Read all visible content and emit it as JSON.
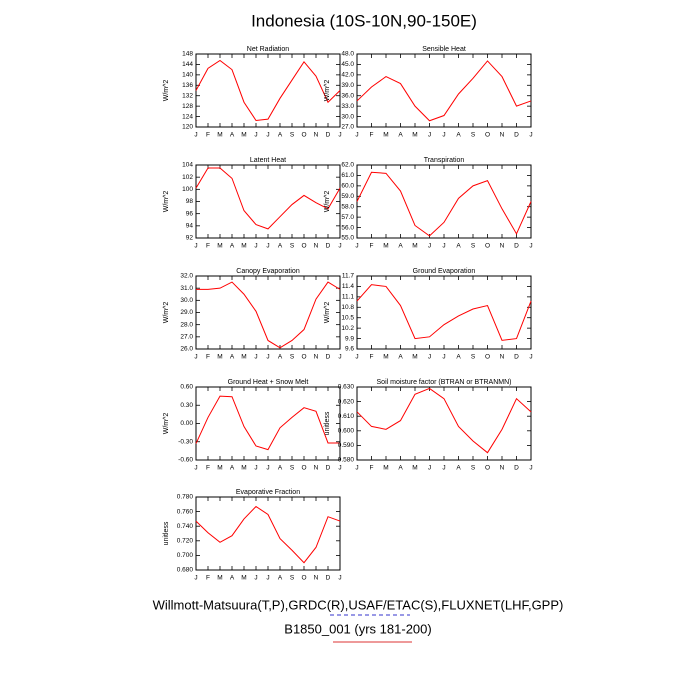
{
  "title": "Indonesia (10S-10N,90-150E)",
  "footer": [
    "Willmott-Matsuura(T,P),GRDC(R),USAF/ETAC(S),FLUXNET(LHF,GPP)",
    "B1850_001 (yrs 181-200)"
  ],
  "chart_data": [
    {
      "type": "line",
      "title": "Net Radiation",
      "ylabel": "W/m^2",
      "color": "#ff0000",
      "categories": [
        "J",
        "F",
        "M",
        "A",
        "M",
        "J",
        "J",
        "A",
        "S",
        "O",
        "N",
        "D",
        "J"
      ],
      "values": [
        134,
        142.5,
        145.5,
        142,
        129.5,
        122.5,
        123,
        131,
        138,
        145,
        139.5,
        129.5,
        134
      ],
      "ylim": [
        120,
        148
      ],
      "yticks": [
        120,
        124,
        128,
        132,
        136,
        140,
        144,
        148
      ]
    },
    {
      "type": "line",
      "title": "Sensible Heat",
      "ylabel": "W/m^2",
      "color": "#ff0000",
      "categories": [
        "J",
        "F",
        "M",
        "A",
        "M",
        "J",
        "J",
        "A",
        "S",
        "O",
        "N",
        "D",
        "J"
      ],
      "values": [
        34.5,
        38.5,
        41.5,
        39.5,
        33,
        28.8,
        30.3,
        36.5,
        41,
        46,
        41.5,
        33,
        34.5
      ],
      "ylim": [
        27,
        48
      ],
      "yticks": [
        {
          "value": 27,
          "label": "27.0"
        },
        {
          "value": 30,
          "label": "30.0"
        },
        {
          "value": 33,
          "label": "33.0"
        },
        {
          "value": 36,
          "label": "36.0"
        },
        {
          "value": 39,
          "label": "39.0"
        },
        {
          "value": 42,
          "label": "42.0"
        },
        {
          "value": 45,
          "label": "45.0"
        },
        {
          "value": 48,
          "label": "48.0"
        }
      ]
    },
    {
      "type": "line",
      "title": "Latent Heat",
      "ylabel": "W/m^2",
      "color": "#ff0000",
      "categories": [
        "J",
        "F",
        "M",
        "A",
        "M",
        "J",
        "J",
        "A",
        "S",
        "O",
        "N",
        "D",
        "J"
      ],
      "values": [
        100.2,
        103.5,
        103.5,
        101.8,
        96.5,
        94.2,
        93.5,
        95.5,
        97.5,
        99,
        97.8,
        96.8,
        100.2
      ],
      "ylim": [
        92,
        104
      ],
      "yticks": [
        92,
        94,
        96,
        98,
        100,
        102,
        104
      ]
    },
    {
      "type": "line",
      "title": "Transpiration",
      "ylabel": "W/m^2",
      "color": "#ff0000",
      "categories": [
        "J",
        "F",
        "M",
        "A",
        "M",
        "J",
        "J",
        "A",
        "S",
        "O",
        "N",
        "D",
        "J"
      ],
      "values": [
        58.5,
        61.3,
        61.2,
        59.5,
        56.2,
        55.2,
        56.5,
        58.8,
        60,
        60.5,
        57.8,
        55.4,
        58.5
      ],
      "ylim": [
        55,
        62
      ],
      "yticks": [
        {
          "value": 55,
          "label": "55.0"
        },
        {
          "value": 56,
          "label": "56.0"
        },
        {
          "value": 57,
          "label": "57.0"
        },
        {
          "value": 58,
          "label": "58.0"
        },
        {
          "value": 59,
          "label": "59.0"
        },
        {
          "value": 60,
          "label": "60.0"
        },
        {
          "value": 61,
          "label": "61.0"
        },
        {
          "value": 62,
          "label": "62.0"
        }
      ]
    },
    {
      "type": "line",
      "title": "Canopy Evaporation",
      "ylabel": "W/m^2",
      "color": "#ff0000",
      "categories": [
        "J",
        "F",
        "M",
        "A",
        "M",
        "J",
        "J",
        "A",
        "S",
        "O",
        "N",
        "D",
        "J"
      ],
      "values": [
        30.9,
        30.9,
        31.0,
        31.5,
        30.5,
        29.1,
        26.7,
        26.1,
        26.7,
        27.6,
        30.1,
        31.5,
        30.9
      ],
      "ylim": [
        26,
        32
      ],
      "yticks": [
        {
          "value": 26,
          "label": "26.0"
        },
        {
          "value": 27,
          "label": "27.0"
        },
        {
          "value": 28,
          "label": "28.0"
        },
        {
          "value": 29,
          "label": "29.0"
        },
        {
          "value": 30,
          "label": "30.0"
        },
        {
          "value": 31,
          "label": "31.0"
        },
        {
          "value": 32,
          "label": "32.0"
        }
      ]
    },
    {
      "type": "line",
      "title": "Ground Evaporation",
      "ylabel": "W/m^2",
      "color": "#ff0000",
      "categories": [
        "J",
        "F",
        "M",
        "A",
        "M",
        "J",
        "J",
        "A",
        "S",
        "O",
        "N",
        "D",
        "J"
      ],
      "values": [
        10.98,
        11.45,
        11.4,
        10.85,
        9.9,
        9.95,
        10.3,
        10.55,
        10.75,
        10.85,
        9.85,
        9.9,
        10.98
      ],
      "ylim": [
        9.6,
        11.7
      ],
      "yticks": [
        9.6,
        9.9,
        10.2,
        10.5,
        10.8,
        11.1,
        11.4,
        11.7
      ]
    },
    {
      "type": "line",
      "title": "Ground Heat + Snow Melt",
      "ylabel": "W/m^2",
      "color": "#ff0000",
      "categories": [
        "J",
        "F",
        "M",
        "A",
        "M",
        "J",
        "J",
        "A",
        "S",
        "O",
        "N",
        "D",
        "J"
      ],
      "values": [
        -0.33,
        0.1,
        0.45,
        0.44,
        -0.05,
        -0.37,
        -0.43,
        -0.07,
        0.1,
        0.26,
        0.2,
        -0.32,
        -0.32
      ],
      "ylim": [
        -0.6,
        0.6
      ],
      "yticks": [
        {
          "value": -0.6,
          "label": "-0.60"
        },
        {
          "value": -0.3,
          "label": "-0.30"
        },
        {
          "value": 0,
          "label": "0.00"
        },
        {
          "value": 0.3,
          "label": "0.30"
        },
        {
          "value": 0.6,
          "label": "0.60"
        }
      ]
    },
    {
      "type": "line",
      "title": "Soil moisture factor (BTRAN or BTRANMN)",
      "ylabel": "unitless",
      "color": "#ff0000",
      "categories": [
        "J",
        "F",
        "M",
        "A",
        "M",
        "J",
        "J",
        "A",
        "S",
        "O",
        "N",
        "D",
        "J"
      ],
      "values": [
        0.613,
        0.603,
        0.601,
        0.607,
        0.625,
        0.629,
        0.622,
        0.603,
        0.593,
        0.585,
        0.601,
        0.622,
        0.613
      ],
      "ylim": [
        0.58,
        0.63
      ],
      "yticks": [
        {
          "value": 0.58,
          "label": "0.580"
        },
        {
          "value": 0.59,
          "label": "0.590"
        },
        {
          "value": 0.6,
          "label": "0.600"
        },
        {
          "value": 0.61,
          "label": "0.610"
        },
        {
          "value": 0.62,
          "label": "0.620"
        },
        {
          "value": 0.63,
          "label": "0.630"
        }
      ]
    },
    {
      "type": "line",
      "title": "Evaporative Fraction",
      "ylabel": "unitless",
      "color": "#ff0000",
      "categories": [
        "J",
        "F",
        "M",
        "A",
        "M",
        "J",
        "J",
        "A",
        "S",
        "O",
        "N",
        "D",
        "J"
      ],
      "values": [
        0.747,
        0.731,
        0.718,
        0.727,
        0.75,
        0.767,
        0.756,
        0.723,
        0.707,
        0.69,
        0.711,
        0.753,
        0.747
      ],
      "ylim": [
        0.68,
        0.78
      ],
      "yticks": [
        {
          "value": 0.68,
          "label": "0.680"
        },
        {
          "value": 0.7,
          "label": "0.700"
        },
        {
          "value": 0.72,
          "label": "0.720"
        },
        {
          "value": 0.74,
          "label": "0.740"
        },
        {
          "value": 0.76,
          "label": "0.760"
        },
        {
          "value": 0.78,
          "label": "0.780"
        }
      ]
    }
  ]
}
